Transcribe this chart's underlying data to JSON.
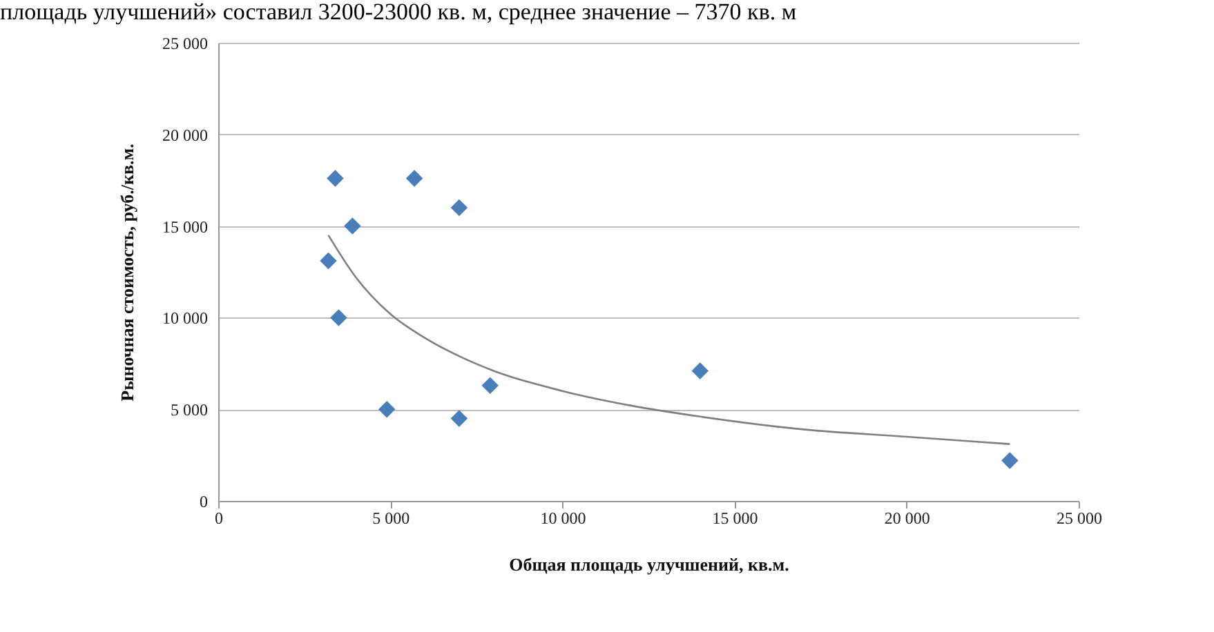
{
  "chart_data": {
    "type": "scatter",
    "xlabel": "Общая площадь улучшений, кв.м.",
    "ylabel": "Рыночная стоимость, руб./кв.м.",
    "annotations": [
      "площадь улучшений» составил 3200-23000 кв. м, среднее значение – 7370 кв. м"
    ],
    "xlim": [
      0,
      25000
    ],
    "ylim": [
      0,
      25000
    ],
    "xticks": [
      {
        "value": 0,
        "label": "0"
      },
      {
        "value": 5000,
        "label": "5 000"
      },
      {
        "value": 10000,
        "label": "10 000"
      },
      {
        "value": 15000,
        "label": "15 000"
      },
      {
        "value": 20000,
        "label": "20 000"
      },
      {
        "value": 25000,
        "label": "25 000"
      }
    ],
    "yticks": [
      {
        "value": 0,
        "label": "0"
      },
      {
        "value": 5000,
        "label": "5 000"
      },
      {
        "value": 10000,
        "label": "10 000"
      },
      {
        "value": 15000,
        "label": "15 000"
      },
      {
        "value": 20000,
        "label": "20 000"
      },
      {
        "value": 25000,
        "label": "25 000"
      }
    ],
    "grid": "y",
    "series": [
      {
        "marker": "diamond",
        "color": "#4a7ebb",
        "x": [
          3400,
          5700,
          7000,
          3900,
          3200,
          3500,
          4900,
          7000,
          7900,
          14000,
          23000
        ],
        "values": [
          17600,
          17600,
          16000,
          15000,
          13100,
          10000,
          5000,
          4500,
          6300,
          7100,
          2200
        ]
      },
      {
        "type": "line",
        "marker": "none",
        "color": "#7f7f7f",
        "x": [
          3200,
          4000,
          5000,
          6000,
          7000,
          8000,
          10000,
          12000,
          14000,
          17000,
          20000,
          23000
        ],
        "values": [
          14500,
          12200,
          10200,
          8900,
          7900,
          7100,
          6000,
          5200,
          4600,
          3900,
          3500,
          3100
        ]
      }
    ]
  }
}
